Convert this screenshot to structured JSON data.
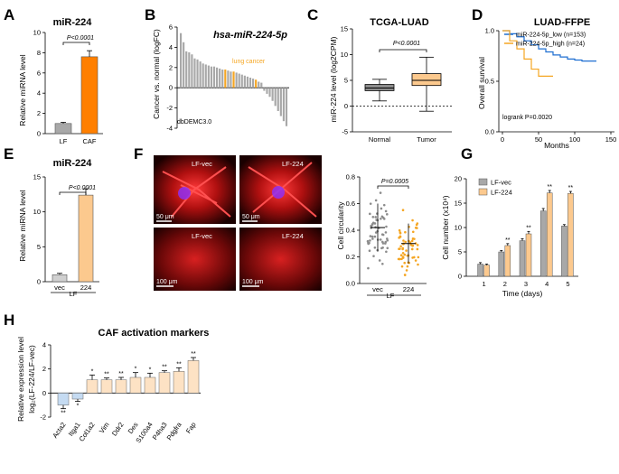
{
  "panels": {
    "A": {
      "label": "A",
      "title": "miR-224",
      "ylabel": "Relative miRNA level",
      "pvalue": "P<0.0001",
      "yticks": [
        "0",
        "2",
        "4",
        "6",
        "8",
        "10"
      ]
    },
    "B": {
      "label": "B",
      "title": "hsa-miR-224-5p",
      "ylabel": "Cancer vs. normal (logFC)",
      "annotation": "lung cancer",
      "source": "dbDEMC3.0",
      "yticks": [
        "-4",
        "-2",
        "0",
        "2",
        "4",
        "6"
      ]
    },
    "C": {
      "label": "C",
      "title": "TCGA-LUAD",
      "ylabel": "miR-224 level (log2CPM)",
      "pvalue": "P<0.0001",
      "yticks": [
        "-5",
        "0",
        "5",
        "10",
        "15"
      ]
    },
    "D": {
      "label": "D",
      "title": "LUAD-FFPE",
      "ylabel": "Overall survival",
      "xlabel": "Months",
      "stat": "logrank P=0.0020",
      "yticks": [
        "0.0",
        "0.5",
        "1.0"
      ],
      "xticks": [
        "0",
        "50",
        "100",
        "150"
      ]
    },
    "E": {
      "label": "E",
      "title": "miR-224",
      "ylabel": "Relative miRNA level",
      "pvalue": "P<0.0001",
      "group": "LF",
      "yticks": [
        "0",
        "5",
        "10",
        "15"
      ]
    },
    "F": {
      "label": "F",
      "img_labels": [
        "LF-vec",
        "LF-224",
        "LF-vec",
        "LF-224"
      ],
      "scalebars": [
        "50 μm",
        "50 μm",
        "100 μm",
        "100 μm"
      ],
      "ylabel": "Cell circularity",
      "pvalue": "P=0.0005",
      "group": "LF",
      "yticks": [
        "0.0",
        "0.2",
        "0.4",
        "0.6",
        "0.8"
      ]
    },
    "G": {
      "label": "G",
      "ylabel": "Cell number (x10⁴)",
      "xlabel": "Time (days)",
      "yticks": [
        "0",
        "5",
        "10",
        "15",
        "20"
      ],
      "sig": "**"
    },
    "H": {
      "label": "H",
      "title": "CAF activation markers",
      "ylabel1": "Relative expression level",
      "ylabel2": "log₂(LF-224/LF-vec)",
      "yticks": [
        "-2",
        "0",
        "2",
        "4"
      ]
    }
  },
  "chart_data": [
    {
      "type": "bar",
      "panel": "A",
      "categories": [
        "LF",
        "CAF"
      ],
      "values": [
        1.0,
        7.6
      ],
      "errors": [
        0.12,
        0.6
      ],
      "ylim": [
        0,
        10
      ],
      "colors": [
        "#a8a8a8",
        "#ff7f00"
      ]
    },
    {
      "type": "bar",
      "panel": "B",
      "values": [
        5.4,
        4.5,
        3.6,
        3.5,
        3.3,
        2.9,
        2.8,
        2.6,
        2.4,
        2.3,
        2.2,
        2.1,
        2.1,
        2.0,
        1.9,
        1.8,
        1.8,
        1.7,
        1.6,
        1.6,
        1.5,
        1.4,
        1.3,
        1.2,
        1.1,
        1.0,
        0.9,
        0.8,
        0.6,
        0.5,
        -0.3,
        -0.6,
        -0.9,
        -1.3,
        -1.8,
        -2.3,
        -2.8,
        -3.3,
        -3.8
      ],
      "highlight_indices": [
        16,
        19,
        27
      ],
      "ylim": [
        -4,
        6
      ],
      "colors": [
        "#a8a8a8",
        "#f5a623"
      ]
    },
    {
      "type": "box",
      "panel": "C",
      "categories": [
        "Normal",
        "Tumor"
      ],
      "boxes": [
        {
          "min": 1.0,
          "q1": 3.0,
          "median": 3.5,
          "q3": 4.2,
          "max": 5.2
        },
        {
          "min": -1.0,
          "q1": 4.0,
          "median": 5.0,
          "q3": 6.3,
          "max": 9.5
        }
      ],
      "ylim": [
        -5,
        15
      ],
      "colors": [
        "#8c8c8c",
        "#fcc98e"
      ]
    },
    {
      "type": "line",
      "panel": "D",
      "series": [
        {
          "name": "miR-224-5p_low (n=153)",
          "x": [
            0,
            10,
            20,
            30,
            40,
            50,
            60,
            70,
            80,
            90,
            100,
            110,
            120,
            130
          ],
          "y": [
            1.0,
            0.97,
            0.94,
            0.9,
            0.86,
            0.82,
            0.79,
            0.76,
            0.74,
            0.72,
            0.71,
            0.7,
            0.7,
            0.7
          ],
          "color": "#1f6fd1"
        },
        {
          "name": "miR-224-5p_high (n=24)",
          "x": [
            0,
            10,
            20,
            30,
            40,
            50,
            60,
            70
          ],
          "y": [
            1.0,
            0.9,
            0.82,
            0.72,
            0.62,
            0.55,
            0.55,
            0.55
          ],
          "color": "#f5a623"
        }
      ],
      "xlim": [
        0,
        150
      ],
      "ylim": [
        0,
        1.0
      ]
    },
    {
      "type": "bar",
      "panel": "E",
      "categories": [
        "vec",
        "224"
      ],
      "values": [
        1.0,
        12.4
      ],
      "errors": [
        0.2,
        0.9
      ],
      "ylim": [
        0,
        15
      ],
      "colors": [
        "#d0d0d0",
        "#fcc98e"
      ]
    },
    {
      "type": "scatter",
      "panel": "F",
      "categories": [
        "vec",
        "224"
      ],
      "means": [
        0.42,
        0.3
      ],
      "sd": [
        0.18,
        0.15
      ],
      "ylim": [
        0,
        0.8
      ],
      "colors": [
        "#8c8c8c",
        "#f5a623"
      ]
    },
    {
      "type": "bar",
      "panel": "G",
      "categories": [
        "1",
        "2",
        "3",
        "4",
        "5"
      ],
      "series": [
        {
          "name": "LF-vec",
          "values": [
            2.5,
            5.0,
            7.3,
            13.4,
            10.3
          ],
          "errors": [
            0.3,
            0.3,
            0.4,
            0.5,
            0.3
          ],
          "color": "#a8a8a8"
        },
        {
          "name": "LF-224",
          "values": [
            2.3,
            6.3,
            8.7,
            17.1,
            17.0
          ],
          "errors": [
            0.2,
            0.4,
            0.5,
            0.5,
            0.4
          ],
          "color": "#fcc98e"
        }
      ],
      "ylim": [
        0,
        20
      ]
    },
    {
      "type": "bar",
      "panel": "H",
      "categories": [
        "Acta2",
        "Itga1",
        "Col1a2",
        "Vim",
        "Ddr2",
        "Des",
        "S100a4",
        "P4ha3",
        "Pdgfra",
        "Fap"
      ],
      "values": [
        -1.0,
        -0.5,
        1.1,
        1.1,
        1.1,
        1.3,
        1.3,
        1.7,
        1.8,
        2.7
      ],
      "errors": [
        0.3,
        0.2,
        0.4,
        0.15,
        0.2,
        0.4,
        0.35,
        0.15,
        0.3,
        0.25
      ],
      "sig": [
        "**",
        "*",
        "*",
        "**",
        "**",
        "*",
        "*",
        "**",
        "**",
        "**"
      ],
      "ylim": [
        -2,
        4
      ],
      "colors": [
        "#c5dbf2",
        "#fde2c4"
      ]
    }
  ]
}
